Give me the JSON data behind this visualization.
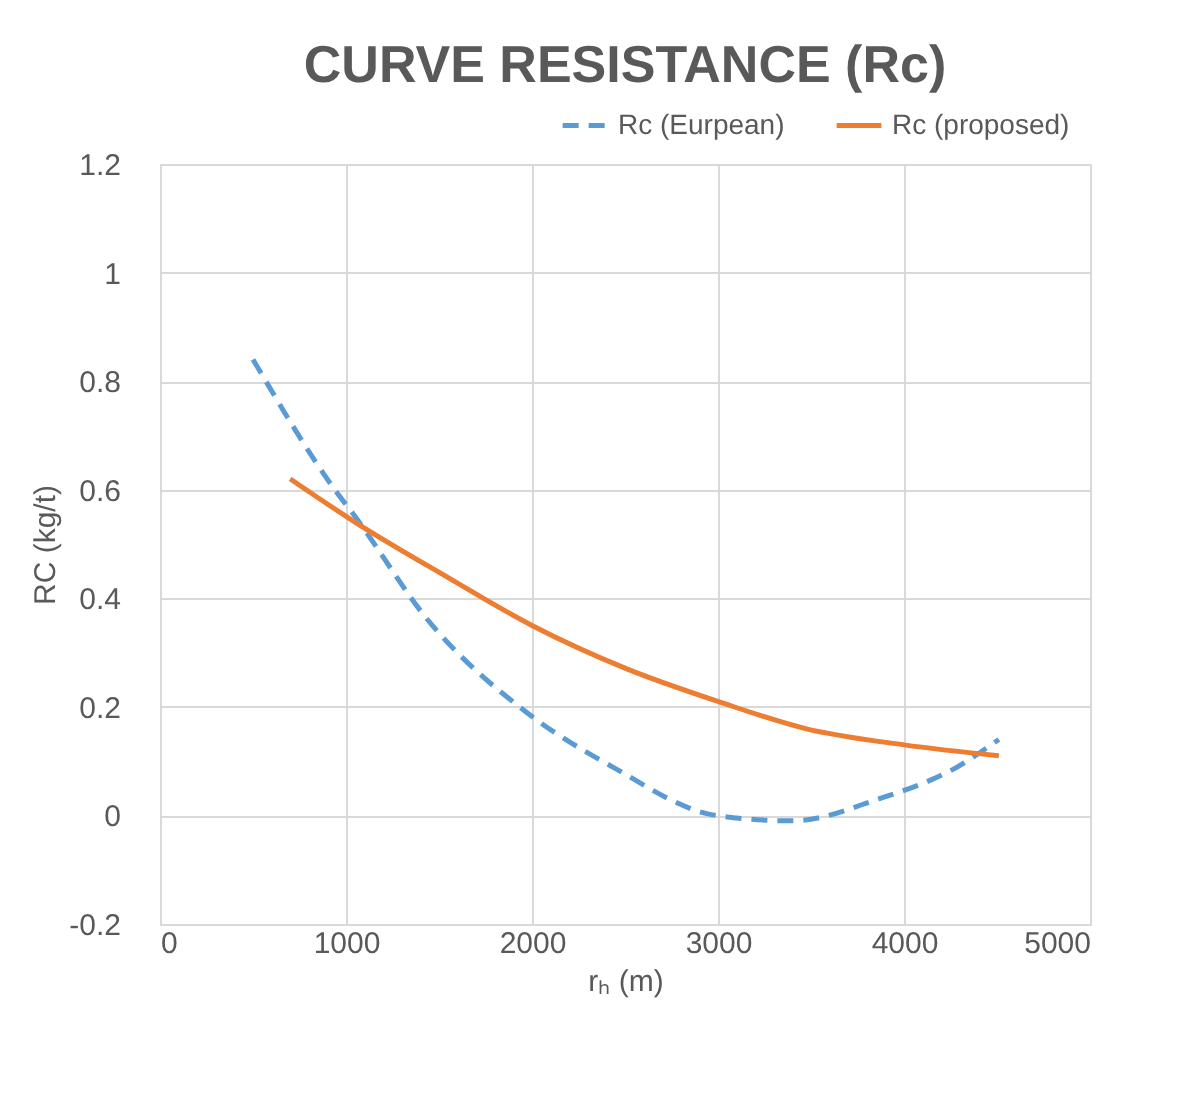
{
  "chart_data": {
    "type": "line",
    "title": "CURVE RESISTANCE (Rc)",
    "xlabel": "rₕ (m)",
    "ylabel": "RC (kg/t)",
    "xlim": [
      0,
      5000
    ],
    "xticks": [
      0,
      1000,
      2000,
      3000,
      4000,
      5000
    ],
    "ylim": [
      -0.2,
      1.2
    ],
    "yticks": [
      -0.2,
      0,
      0.2,
      0.4,
      0.6,
      0.8,
      1,
      1.2
    ],
    "grid": true,
    "legend": "top right",
    "marker": "none",
    "series": [
      {
        "name": "Rc (Eurpean)",
        "color": "#5b9bd5",
        "line_style": "dashed",
        "x": [
          500,
          940,
          1050,
          1440,
          1970,
          2430,
          2990,
          3400,
          3860,
          4290,
          4510
        ],
        "values": [
          0.84,
          0.6,
          0.55,
          0.36,
          0.19,
          0.09,
          0.0,
          -0.01,
          0.03,
          0.09,
          0.14
        ]
      },
      {
        "name": "Rc (proposed)",
        "color": "#ed7d31",
        "line_style": "solid",
        "x": [
          700,
          1050,
          1540,
          2000,
          2510,
          3000,
          3470,
          4000,
          4510
        ],
        "values": [
          0.62,
          0.54,
          0.44,
          0.35,
          0.27,
          0.21,
          0.16,
          0.13,
          0.11
        ]
      }
    ]
  }
}
